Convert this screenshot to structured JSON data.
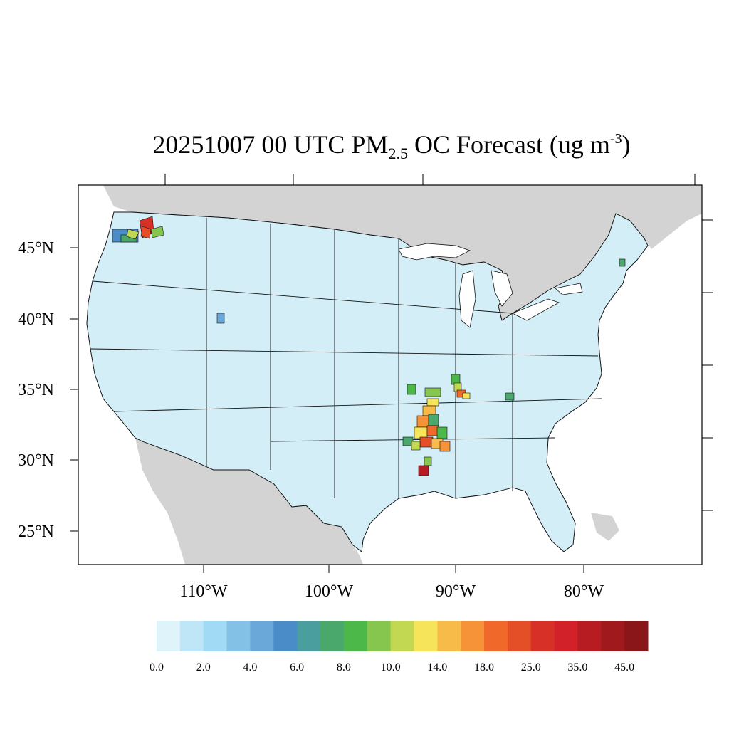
{
  "title": {
    "main": "20251007 00 UTC PM",
    "sub": "2.5",
    "middle": " OC Forecast (ug m",
    "sup": "-3",
    "end": ")"
  },
  "map": {
    "land_color": "#d3d3d3",
    "water_color": "#ffffff",
    "lat_labels": [
      "25°N",
      "30°N",
      "35°N",
      "40°N",
      "45°N"
    ],
    "lon_labels": [
      "110°W",
      "100°W",
      "90°W",
      "80°W"
    ]
  },
  "colorbar": {
    "colors": [
      "#dff3fb",
      "#bfe6f7",
      "#a0daf5",
      "#84c1e6",
      "#6aa8da",
      "#4a8cc8",
      "#4b9e9e",
      "#4aa86c",
      "#4db84a",
      "#86c54e",
      "#c2d752",
      "#f6e55a",
      "#f7bb4a",
      "#f69237",
      "#f1692a",
      "#e44f27",
      "#d73127",
      "#d22128",
      "#b61c22",
      "#a01a1d",
      "#8a1619"
    ],
    "labels": [
      "0.0",
      "2.0",
      "4.0",
      "6.0",
      "8.0",
      "10.0",
      "14.0",
      "18.0",
      "25.0",
      "35.0",
      "45.0"
    ]
  }
}
